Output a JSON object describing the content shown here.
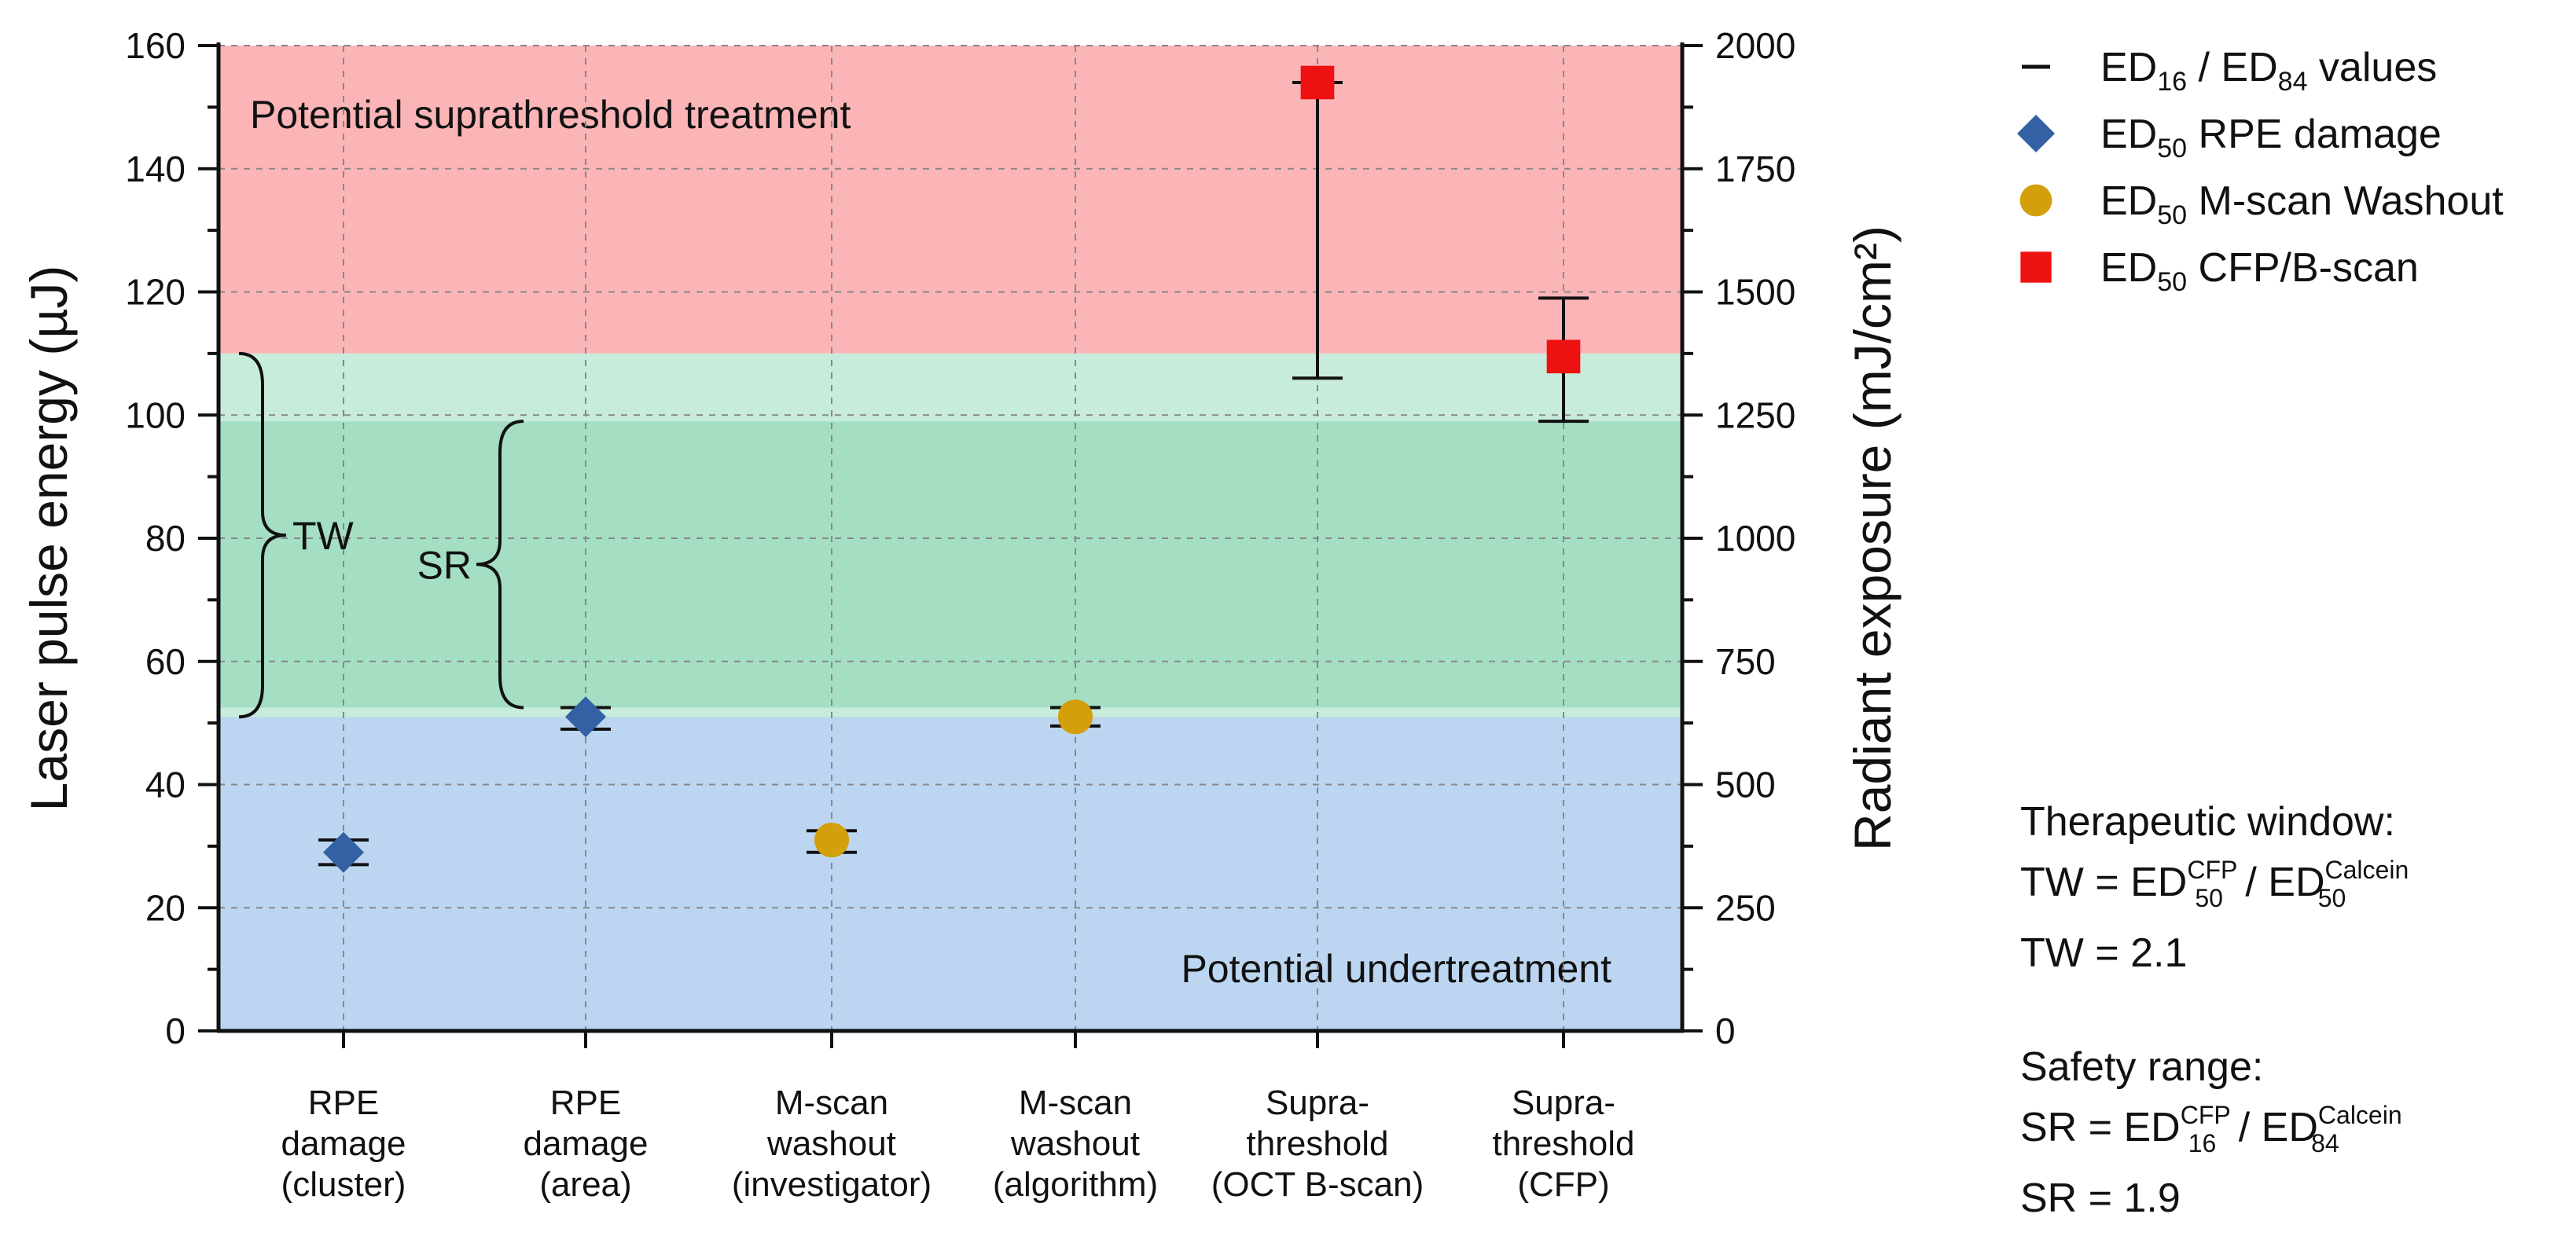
{
  "chart_data": {
    "type": "scatter",
    "ylabel": "Laser pulse energy (µJ)",
    "y2label": "Radiant exposure (mJ/cm²)",
    "ylim": [
      0,
      160
    ],
    "y2lim": [
      0,
      2000
    ],
    "yticks": [
      0,
      20,
      40,
      60,
      80,
      100,
      120,
      140,
      160
    ],
    "y2ticks": [
      0,
      250,
      500,
      750,
      1000,
      1250,
      1500,
      1750,
      2000
    ],
    "grid": true,
    "categories": [
      [
        "RPE",
        "damage",
        "(cluster)"
      ],
      [
        "RPE",
        "damage",
        "(area)"
      ],
      [
        "M-scan",
        "washout",
        "(investigator)"
      ],
      [
        "M-scan",
        "washout",
        "(algorithm)"
      ],
      [
        "Supra-",
        "threshold",
        "(OCT B-scan)"
      ],
      [
        "Supra-",
        "threshold",
        "(CFP)"
      ]
    ],
    "series": [
      {
        "name": "ED50 RPE damage",
        "marker": "diamond",
        "color": "#3461a3",
        "points": [
          {
            "cat": 0,
            "ed50": 29,
            "ed16": 27,
            "ed84": 31
          },
          {
            "cat": 1,
            "ed50": 51,
            "ed16": 49,
            "ed84": 52.5
          }
        ]
      },
      {
        "name": "ED50 M-scan Washout",
        "marker": "circle",
        "color": "#d39f0a",
        "points": [
          {
            "cat": 2,
            "ed50": 31,
            "ed16": 29,
            "ed84": 32.5
          },
          {
            "cat": 3,
            "ed50": 51,
            "ed16": 49.5,
            "ed84": 52.5
          }
        ]
      },
      {
        "name": "ED50 CFP/B-scan",
        "marker": "square",
        "color": "#ee1111",
        "points": [
          {
            "cat": 4,
            "ed50": 154,
            "ed16": 106,
            "ed84": 154
          },
          {
            "cat": 5,
            "ed50": 109.5,
            "ed16": 99,
            "ed84": 119
          }
        ]
      }
    ],
    "bands": [
      {
        "name": "suprathreshold",
        "from": 110,
        "to": 160,
        "color": "#fbb5b7",
        "label": "Potential suprathreshold treatment"
      },
      {
        "name": "therapeutic-window-outer",
        "from": 99,
        "to": 110,
        "color": "#c7ecdb",
        "label": ""
      },
      {
        "name": "safety-range",
        "from": 52.5,
        "to": 99,
        "color": "#a4dfc4",
        "label": ""
      },
      {
        "name": "therapeutic-window-lower-edge",
        "from": 51,
        "to": 52.5,
        "color": "#c7ecdb",
        "label": ""
      },
      {
        "name": "undertreatment",
        "from": 0,
        "to": 51,
        "color": "#bcd6f1",
        "label": "Potential undertreatment"
      }
    ],
    "braces": [
      {
        "label": "TW",
        "from": 51,
        "to": 110
      },
      {
        "label": "SR",
        "from": 52.5,
        "to": 99
      }
    ],
    "legend": {
      "position": "top-right",
      "items": [
        {
          "symbol": "errorbar",
          "text": "ED",
          "sub1": "16",
          "mid": " / ED",
          "sub2": "84",
          "tail": " values"
        },
        {
          "symbol": "diamond",
          "text": "ED",
          "sub1": "50",
          "tail": " RPE damage"
        },
        {
          "symbol": "circle",
          "text": "ED",
          "sub1": "50",
          "tail": " M-scan Washout"
        },
        {
          "symbol": "square",
          "text": "ED",
          "sub1": "50",
          "tail": " CFP/B-scan"
        }
      ]
    },
    "info": {
      "tw_heading": "Therapeutic window:",
      "tw_formula": {
        "lhs": "TW = ED",
        "sup1": "CFP",
        "sub1": "50",
        "mid": " / ED",
        "sup2": "Calcein",
        "sub2": "50"
      },
      "tw_value": "TW = 2.1",
      "sr_heading": "Safety range:",
      "sr_formula": {
        "lhs": "SR = ED",
        "sup1": "CFP",
        "sub1": "16",
        "mid": " / ED",
        "sup2": "Calcein",
        "sub2": "84"
      },
      "sr_value": "SR = 1.9"
    },
    "colors": {
      "rpe": "#3461a3",
      "washout": "#d39f0a",
      "cfp": "#ee1111",
      "axis": "#111111",
      "grid": "#888888"
    }
  }
}
